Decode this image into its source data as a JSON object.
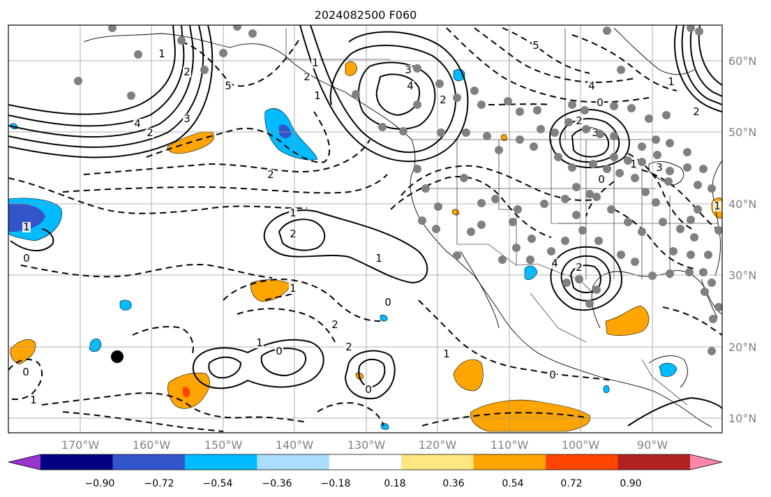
{
  "title": "2024082500 F060",
  "map": {
    "projection": "PlateCarree",
    "lon_range": [
      -180,
      -80
    ],
    "lat_range": [
      7,
      65
    ],
    "grid": true,
    "lon_ticks": [
      "170°W",
      "160°W",
      "150°W",
      "140°W",
      "130°W",
      "120°W",
      "110°W",
      "100°W",
      "90°W"
    ],
    "lat_ticks": [
      "60°N",
      "50°N",
      "40°N",
      "30°N",
      "20°N",
      "10°N"
    ]
  },
  "colorbar": {
    "ticks": [
      "−0.90",
      "−0.72",
      "−0.54",
      "−0.36",
      "−0.18",
      "0.18",
      "0.36",
      "0.54",
      "0.72",
      "0.90"
    ],
    "colors": [
      "#9933cc",
      "#000080",
      "#3355cc",
      "#00bbff",
      "#aaddff",
      "#ffffff",
      "#ffe680",
      "#ffa500",
      "#ff4500",
      "#b22222",
      "#ff88aa"
    ],
    "extend": "both"
  },
  "contour_labels": [
    "1",
    "2",
    "4",
    "5",
    "3",
    "2",
    "1",
    "0",
    "1",
    "2",
    "4",
    "3",
    "2",
    "1",
    "4",
    "5",
    "0",
    "2",
    "3",
    "2",
    "1",
    "0",
    "1",
    "2",
    "1",
    "0",
    "1",
    "2",
    "1",
    "0",
    "2",
    "1",
    "0",
    "1",
    "2",
    "3",
    "0",
    "1",
    "2",
    "4",
    "1",
    "0"
  ],
  "marker": {
    "color": "#000000",
    "lon": -165,
    "lat": 18.5
  }
}
